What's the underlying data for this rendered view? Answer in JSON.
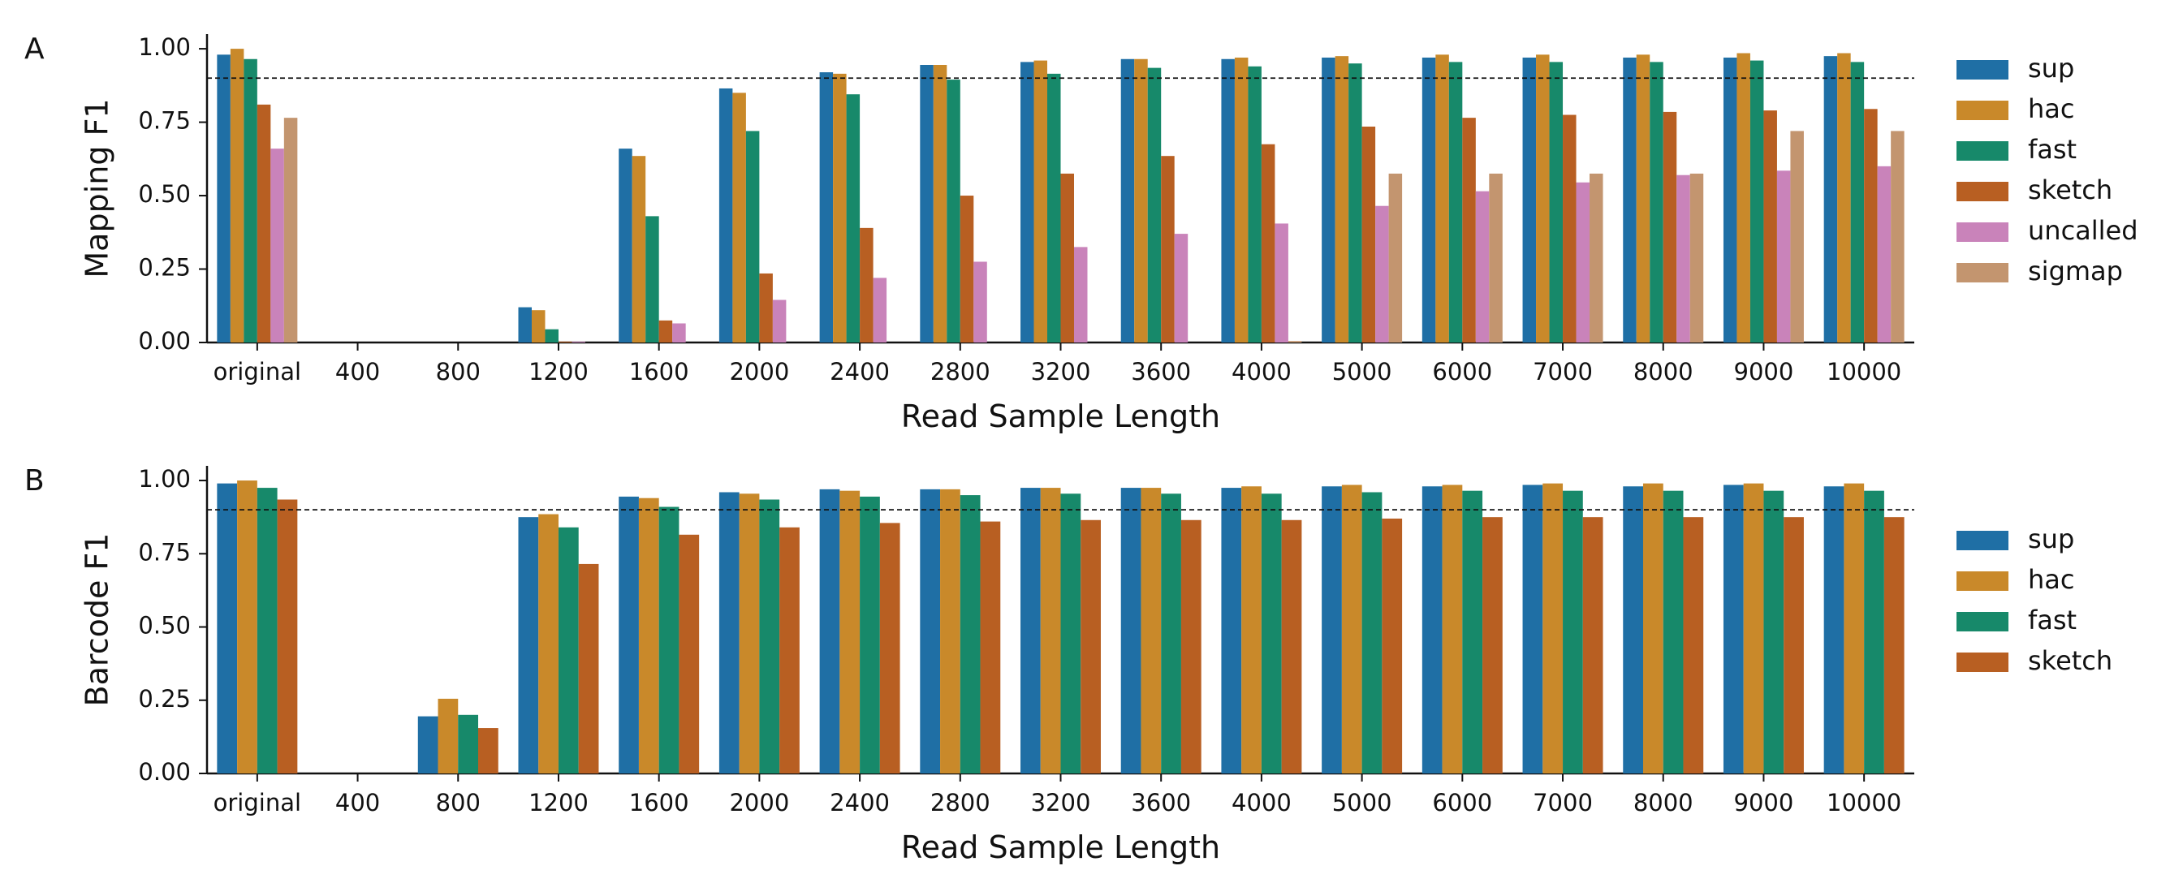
{
  "colors": {
    "sup": "#1f6fa5",
    "hac": "#c9892a",
    "fast": "#17896a",
    "sketch": "#b85f22",
    "uncalled": "#c983ba",
    "sigmap": "#c3956f"
  },
  "chart_data": [
    {
      "type": "bar",
      "panel_label": "A",
      "xlabel": "Read Sample Length",
      "ylabel": "Mapping F1",
      "ylim": [
        0,
        1.05
      ],
      "yticks": [
        "0.00",
        "0.25",
        "0.50",
        "0.75",
        "1.00"
      ],
      "reference_line": 0.9,
      "legend_position": "right",
      "categories": [
        "original",
        "400",
        "800",
        "1200",
        "1600",
        "2000",
        "2400",
        "2800",
        "3200",
        "3600",
        "4000",
        "5000",
        "6000",
        "7000",
        "8000",
        "9000",
        "10000"
      ],
      "series": [
        {
          "name": "sup",
          "values": [
            0.98,
            0,
            0,
            0.12,
            0.66,
            0.865,
            0.92,
            0.945,
            0.955,
            0.965,
            0.965,
            0.97,
            0.97,
            0.97,
            0.97,
            0.97,
            0.975
          ]
        },
        {
          "name": "hac",
          "values": [
            1.0,
            0,
            0,
            0.11,
            0.635,
            0.85,
            0.915,
            0.945,
            0.96,
            0.965,
            0.97,
            0.975,
            0.98,
            0.98,
            0.98,
            0.985,
            0.985
          ]
        },
        {
          "name": "fast",
          "values": [
            0.965,
            0,
            0,
            0.045,
            0.43,
            0.72,
            0.845,
            0.895,
            0.915,
            0.935,
            0.94,
            0.95,
            0.955,
            0.955,
            0.955,
            0.96,
            0.955
          ]
        },
        {
          "name": "sketch",
          "values": [
            0.81,
            0,
            0,
            0.003,
            0.075,
            0.235,
            0.39,
            0.5,
            0.575,
            0.635,
            0.675,
            0.735,
            0.765,
            0.775,
            0.785,
            0.79,
            0.795
          ]
        },
        {
          "name": "uncalled",
          "values": [
            0.66,
            0,
            0,
            0.003,
            0.065,
            0.145,
            0.22,
            0.275,
            0.325,
            0.37,
            0.405,
            0.465,
            0.515,
            0.545,
            0.57,
            0.585,
            0.6
          ]
        },
        {
          "name": "sigmap",
          "values": [
            0.765,
            0,
            0,
            0,
            0,
            0,
            0,
            0,
            0,
            0,
            0.005,
            0.575,
            0.575,
            0.575,
            0.575,
            0.72,
            0.72
          ]
        }
      ]
    },
    {
      "type": "bar",
      "panel_label": "B",
      "xlabel": "Read Sample Length",
      "ylabel": "Barcode F1",
      "ylim": [
        0,
        1.05
      ],
      "yticks": [
        "0.00",
        "0.25",
        "0.50",
        "0.75",
        "1.00"
      ],
      "reference_line": 0.9,
      "legend_position": "right",
      "categories": [
        "original",
        "400",
        "800",
        "1200",
        "1600",
        "2000",
        "2400",
        "2800",
        "3200",
        "3600",
        "4000",
        "5000",
        "6000",
        "7000",
        "8000",
        "9000",
        "10000"
      ],
      "series": [
        {
          "name": "sup",
          "values": [
            0.99,
            0,
            0.195,
            0.875,
            0.945,
            0.96,
            0.97,
            0.97,
            0.975,
            0.975,
            0.975,
            0.98,
            0.98,
            0.985,
            0.98,
            0.985,
            0.98
          ]
        },
        {
          "name": "hac",
          "values": [
            1.0,
            0,
            0.255,
            0.885,
            0.94,
            0.955,
            0.965,
            0.97,
            0.975,
            0.975,
            0.98,
            0.985,
            0.985,
            0.99,
            0.99,
            0.99,
            0.99
          ]
        },
        {
          "name": "fast",
          "values": [
            0.975,
            0,
            0.2,
            0.84,
            0.91,
            0.935,
            0.945,
            0.95,
            0.955,
            0.955,
            0.955,
            0.96,
            0.965,
            0.965,
            0.965,
            0.965,
            0.965
          ]
        },
        {
          "name": "sketch",
          "values": [
            0.935,
            0,
            0.155,
            0.715,
            0.815,
            0.84,
            0.855,
            0.86,
            0.865,
            0.865,
            0.865,
            0.87,
            0.875,
            0.875,
            0.875,
            0.875,
            0.875
          ]
        }
      ]
    }
  ]
}
